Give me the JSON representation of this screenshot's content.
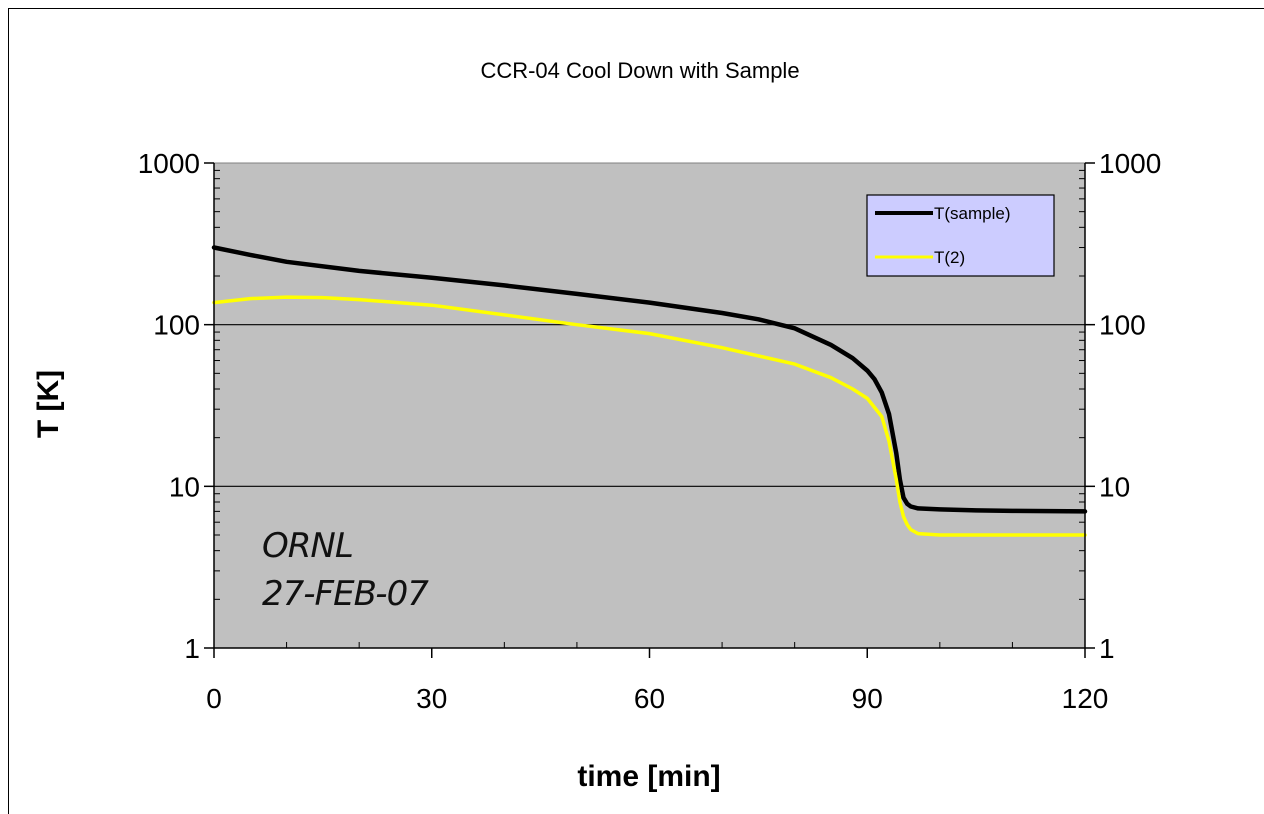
{
  "chart_data": {
    "type": "line",
    "title": "CCR-04 Cool Down with Sample",
    "xlabel": "time [min]",
    "ylabel": "T [K]",
    "xlim": [
      0,
      120
    ],
    "ylim": [
      1,
      1000
    ],
    "yscale": "log",
    "secondary_y_axis": true,
    "x_ticks": [
      0,
      30,
      60,
      90,
      120
    ],
    "y_ticks": [
      1,
      10,
      100,
      1000
    ],
    "grid": "horizontal major",
    "plot_background": "#c0c0c0",
    "legend": {
      "placement": "top-right",
      "background": "#ccccff"
    },
    "annotations": [
      "ORNL",
      "27-FEB-07"
    ],
    "series": [
      {
        "name": "T(sample)",
        "color": "#000000",
        "x": [
          0,
          5,
          10,
          20,
          30,
          40,
          50,
          60,
          70,
          75,
          80,
          85,
          88,
          90,
          91,
          92,
          93,
          94,
          94.5,
          95,
          95.5,
          96,
          97,
          100,
          105,
          110,
          120
        ],
        "y": [
          300,
          270,
          245,
          215,
          195,
          175,
          155,
          137,
          118,
          108,
          95,
          75,
          62,
          52,
          46,
          38,
          28,
          16,
          11,
          8.5,
          7.8,
          7.5,
          7.3,
          7.2,
          7.1,
          7.05,
          7.0
        ]
      },
      {
        "name": "T(2)",
        "color": "#ffff00",
        "x": [
          0,
          5,
          10,
          15,
          20,
          30,
          40,
          50,
          60,
          70,
          80,
          85,
          88,
          90,
          92,
          93,
          94,
          94.5,
          95,
          95.5,
          96,
          97,
          100,
          110,
          120
        ],
        "y": [
          137,
          145,
          148,
          147,
          143,
          132,
          115,
          100,
          88,
          72,
          57,
          47,
          40,
          35,
          27,
          19,
          11,
          8,
          6.5,
          5.8,
          5.4,
          5.1,
          5.0,
          5.0,
          5.0
        ]
      }
    ]
  }
}
